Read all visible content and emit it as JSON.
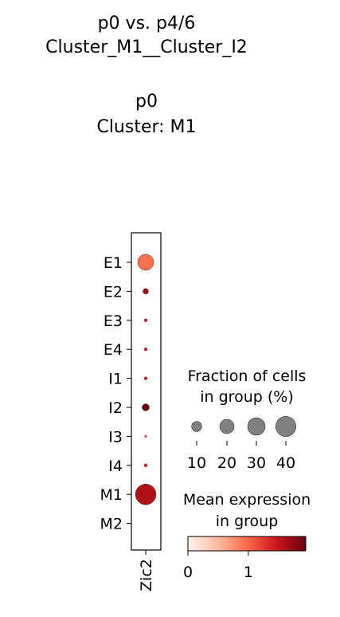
{
  "title_lines": [
    "p0 vs. p4/6",
    "Cluster_M1__Cluster_I2",
    "",
    "p0",
    "Cluster: M1"
  ],
  "chart_data": {
    "type": "dotplot",
    "genes": [
      "Zic2"
    ],
    "groups": [
      "E1",
      "E2",
      "E3",
      "E4",
      "I1",
      "I2",
      "I3",
      "I4",
      "M1",
      "M2"
    ],
    "fraction_percent": [
      25,
      3,
      1,
      1,
      1,
      5,
      0.5,
      1,
      42,
      0
    ],
    "mean_expression": [
      0.95,
      1.7,
      1.5,
      1.5,
      1.5,
      2.0,
      1.3,
      1.5,
      1.6,
      0
    ],
    "size_legend": {
      "title_lines": [
        "Fraction of cells",
        "in group (%)"
      ],
      "values": [
        10,
        20,
        30,
        40
      ],
      "labels": [
        "10",
        "20",
        "30",
        "40"
      ]
    },
    "color_legend": {
      "title_lines": [
        "Mean expression",
        "in group"
      ],
      "min": 0,
      "max": 1.95,
      "ticks": [
        0,
        1
      ],
      "tick_labels": [
        "0",
        "1"
      ],
      "colormap": "Reds"
    }
  }
}
